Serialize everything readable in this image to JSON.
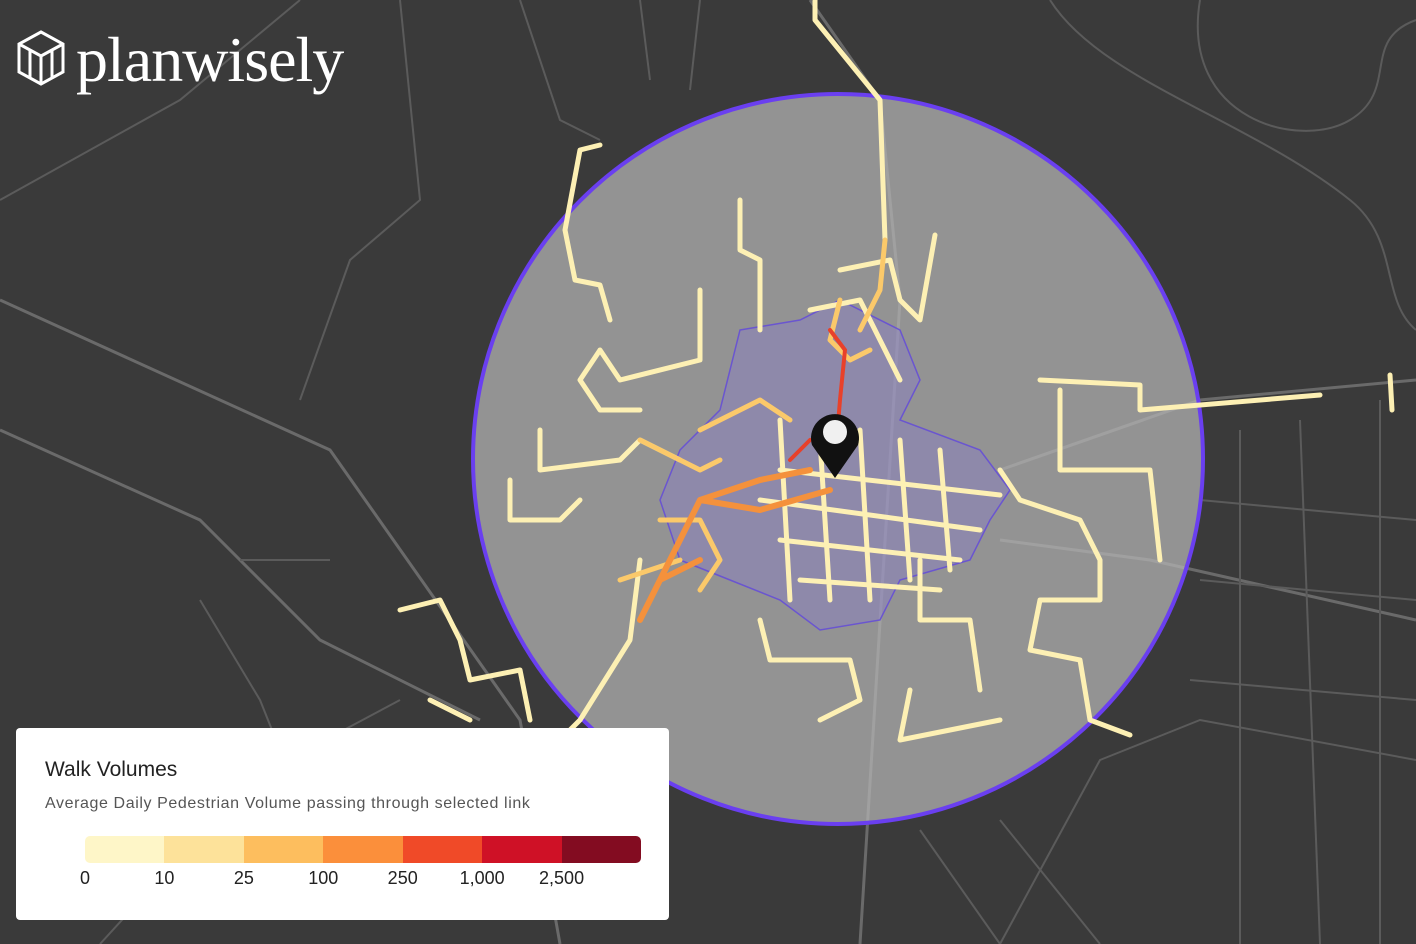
{
  "header": {
    "logo": "planwisely"
  },
  "legend": {
    "title": "Walk Volumes",
    "subtitle": "Average Daily Pedestrian Volume passing through selected link",
    "labels": [
      "0",
      "10",
      "25",
      "100",
      "250",
      "1,000",
      "2,500"
    ],
    "colors": [
      "#fef6c8",
      "#fde29a",
      "#fdbe5e",
      "#fb8f3b",
      "#f04a28",
      "#cf1126",
      "#830c21"
    ]
  }
}
